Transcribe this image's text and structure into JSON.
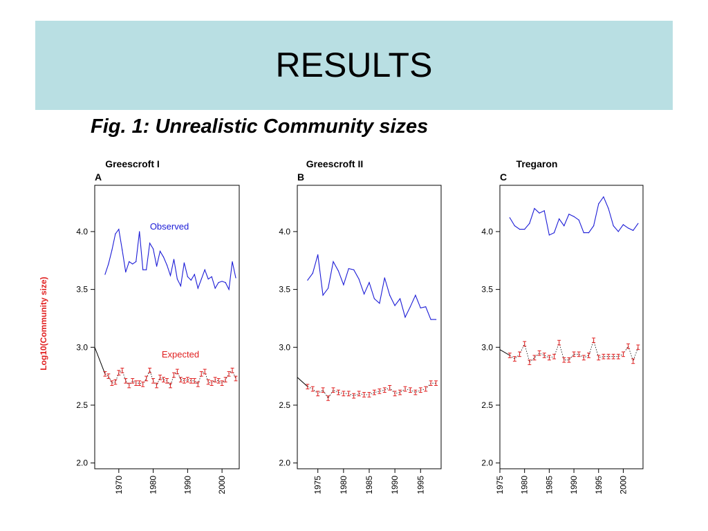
{
  "slide": {
    "title": "RESULTS",
    "caption": "Fig. 1: Unrealistic Community sizes"
  },
  "colors": {
    "header_bg": "#b9dfe3",
    "observed": "#1a1ad6",
    "expected": "#e01e1e",
    "ylabel": "#e01e1e"
  },
  "chart_data": [
    {
      "type": "line",
      "panel": "A",
      "title": "Greescroft I",
      "ylabel": "Log10(Community size)",
      "xlabel": "",
      "xlim": [
        1963,
        2005
      ],
      "ylim": [
        1.95,
        4.4
      ],
      "xticks": [
        1970,
        1980,
        1990,
        2000
      ],
      "yticks": [
        "2.0",
        "2.5",
        "3.0",
        "3.5",
        "4.0"
      ],
      "annotations": [
        "Observed",
        "Expected"
      ],
      "series": [
        {
          "name": "Observed",
          "x": [
            1966,
            1967,
            1968,
            1969,
            1970,
            1971,
            1972,
            1973,
            1974,
            1975,
            1976,
            1977,
            1978,
            1979,
            1980,
            1981,
            1982,
            1983,
            1984,
            1985,
            1986,
            1987,
            1988,
            1989,
            1990,
            1991,
            1992,
            1993,
            1994,
            1995,
            1996,
            1997,
            1998,
            1999,
            2000,
            2001,
            2002,
            2003,
            2004
          ],
          "y": [
            3.63,
            3.72,
            3.84,
            3.98,
            4.02,
            3.84,
            3.65,
            3.74,
            3.72,
            3.74,
            4.0,
            3.67,
            3.67,
            3.9,
            3.85,
            3.7,
            3.83,
            3.78,
            3.71,
            3.62,
            3.76,
            3.59,
            3.53,
            3.73,
            3.61,
            3.58,
            3.63,
            3.51,
            3.59,
            3.67,
            3.59,
            3.61,
            3.51,
            3.56,
            3.57,
            3.56,
            3.5,
            3.74,
            3.6
          ]
        },
        {
          "name": "Expected",
          "x": [
            1966,
            1967,
            1968,
            1969,
            1970,
            1971,
            1972,
            1973,
            1974,
            1975,
            1976,
            1977,
            1978,
            1979,
            1980,
            1981,
            1982,
            1983,
            1984,
            1985,
            1986,
            1987,
            1988,
            1989,
            1990,
            1991,
            1992,
            1993,
            1994,
            1995,
            1996,
            1997,
            1998,
            1999,
            2000,
            2001,
            2002,
            2003,
            2004
          ],
          "y": [
            2.77,
            2.75,
            2.69,
            2.7,
            2.78,
            2.8,
            2.71,
            2.67,
            2.71,
            2.69,
            2.69,
            2.68,
            2.73,
            2.8,
            2.71,
            2.67,
            2.74,
            2.72,
            2.71,
            2.67,
            2.76,
            2.79,
            2.72,
            2.71,
            2.72,
            2.71,
            2.71,
            2.68,
            2.77,
            2.79,
            2.7,
            2.69,
            2.72,
            2.71,
            2.69,
            2.72,
            2.77,
            2.8,
            2.73
          ],
          "err": 0.02,
          "lead_in": {
            "x": [
              1963,
              1966
            ],
            "y": [
              3.0,
              2.77
            ]
          }
        }
      ]
    },
    {
      "type": "line",
      "panel": "B",
      "title": "Greescroft II",
      "ylabel": "",
      "xlabel": "",
      "xlim": [
        1971,
        1999
      ],
      "ylim": [
        1.95,
        4.4
      ],
      "xticks": [
        1975,
        1980,
        1985,
        1990,
        1995
      ],
      "yticks": [
        "2.0",
        "2.5",
        "3.0",
        "3.5",
        "4.0"
      ],
      "annotations": [],
      "series": [
        {
          "name": "Observed",
          "x": [
            1973,
            1974,
            1975,
            1976,
            1977,
            1978,
            1979,
            1980,
            1981,
            1982,
            1983,
            1984,
            1985,
            1986,
            1987,
            1988,
            1989,
            1990,
            1991,
            1992,
            1993,
            1994,
            1995,
            1996,
            1997,
            1998
          ],
          "y": [
            3.58,
            3.64,
            3.8,
            3.45,
            3.51,
            3.74,
            3.66,
            3.54,
            3.68,
            3.67,
            3.59,
            3.46,
            3.56,
            3.42,
            3.38,
            3.6,
            3.45,
            3.36,
            3.42,
            3.26,
            3.35,
            3.45,
            3.34,
            3.35,
            3.24,
            3.24
          ],
          "x_note": "last point overlaps"
        },
        {
          "name": "Expected",
          "x": [
            1973,
            1974,
            1975,
            1976,
            1977,
            1978,
            1979,
            1980,
            1981,
            1982,
            1983,
            1984,
            1985,
            1986,
            1987,
            1988,
            1989,
            1990,
            1991,
            1992,
            1993,
            1994,
            1995,
            1996,
            1997,
            1998
          ],
          "y": [
            2.66,
            2.64,
            2.6,
            2.63,
            2.56,
            2.63,
            2.61,
            2.6,
            2.6,
            2.58,
            2.6,
            2.59,
            2.59,
            2.61,
            2.62,
            2.63,
            2.65,
            2.6,
            2.61,
            2.64,
            2.63,
            2.61,
            2.63,
            2.64,
            2.69,
            2.69
          ],
          "err": 0.02,
          "lead_in": {
            "x": [
              1971,
              1973
            ],
            "y": [
              2.74,
              2.66
            ]
          }
        }
      ]
    },
    {
      "type": "line",
      "panel": "C",
      "title": "Tregaron",
      "ylabel": "",
      "xlabel": "",
      "xlim": [
        1975,
        2004
      ],
      "ylim": [
        1.95,
        4.4
      ],
      "xticks": [
        1975,
        1980,
        1985,
        1990,
        1995,
        2000
      ],
      "yticks": [
        "2.0",
        "2.5",
        "3.0",
        "3.5",
        "4.0"
      ],
      "annotations": [],
      "series": [
        {
          "name": "Observed",
          "x": [
            1977,
            1978,
            1979,
            1980,
            1981,
            1982,
            1983,
            1984,
            1985,
            1986,
            1987,
            1988,
            1989,
            1990,
            1991,
            1992,
            1993,
            1994,
            1995,
            1996,
            1997,
            1998,
            1999,
            2000,
            2001,
            2002,
            2003
          ],
          "y": [
            4.12,
            4.05,
            4.02,
            4.02,
            4.07,
            4.2,
            4.16,
            4.18,
            3.97,
            3.99,
            4.11,
            4.05,
            4.15,
            4.13,
            4.1,
            3.99,
            3.99,
            4.05,
            4.24,
            4.3,
            4.2,
            4.05,
            4.0,
            4.06,
            4.03,
            4.01,
            4.07
          ]
        },
        {
          "name": "Expected",
          "x": [
            1977,
            1978,
            1979,
            1980,
            1981,
            1982,
            1983,
            1984,
            1985,
            1986,
            1987,
            1988,
            1989,
            1990,
            1991,
            1992,
            1993,
            1994,
            1995,
            1996,
            1997,
            1998,
            1999,
            2000,
            2001,
            2002,
            2003
          ],
          "y": [
            2.93,
            2.9,
            2.94,
            3.03,
            2.87,
            2.91,
            2.95,
            2.93,
            2.91,
            2.92,
            3.04,
            2.89,
            2.89,
            2.94,
            2.94,
            2.91,
            2.93,
            3.06,
            2.91,
            2.92,
            2.92,
            2.92,
            2.92,
            2.94,
            3.01,
            2.88,
            3.0
          ],
          "err": 0.02,
          "lead_in": {
            "x": [
              1975,
              1977
            ],
            "y": [
              2.98,
              2.93
            ]
          }
        }
      ]
    }
  ]
}
